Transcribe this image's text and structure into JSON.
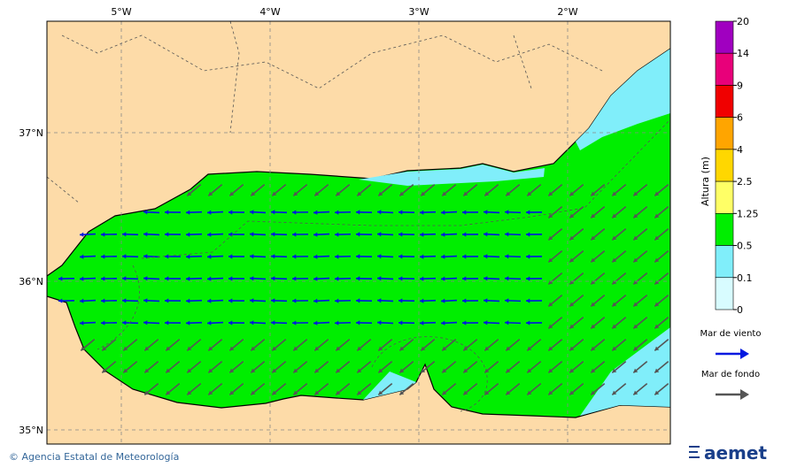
{
  "map": {
    "lon_labels": [
      "5°W",
      "4°W",
      "3°W",
      "2°W"
    ],
    "lat_labels": [
      "37°N",
      "36°N",
      "35°N"
    ]
  },
  "colorbar": {
    "title": "Altura (m)",
    "ticks": [
      20,
      14,
      9,
      6,
      4,
      2.5,
      1.25,
      0.5,
      0.1,
      0
    ],
    "colors": [
      "#a000c0",
      "#e8007a",
      "#f00000",
      "#ffa500",
      "#ffd700",
      "#ffff66",
      "#00ee00",
      "#80eefa",
      "#d8fcff"
    ]
  },
  "legend": [
    {
      "label": "Mar de viento",
      "color": "#0018e0"
    },
    {
      "label": "Mar de fondo",
      "color": "#555555"
    }
  ],
  "footer": {
    "credit": "© Agencia Estatal de Meteorología",
    "logo": "aemet"
  }
}
